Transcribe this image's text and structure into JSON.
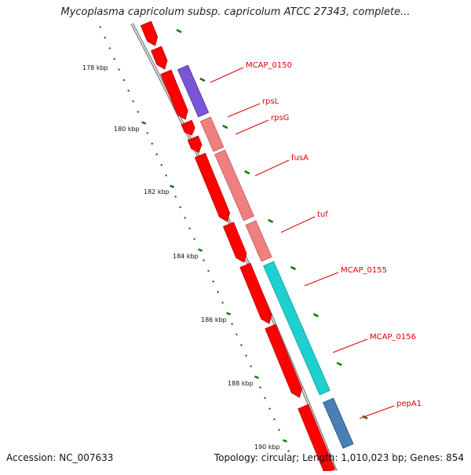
{
  "title": "Mycoplasma capricolum subsp. capricolum ATCC 27343, complete...",
  "accession": "Accession: NC_007633",
  "summary": "Topology: circular; Length: 1,010,023 bp; Genes: 854",
  "colors": {
    "backbone": "#8a8a8a",
    "cds_forward": "#ff0000",
    "cds_forward_edge": "#c80000",
    "tick": "#007a00",
    "label": "#e00000",
    "leader": "#e00000"
  },
  "scale_labels": [
    "178 kbp",
    "180 kbp",
    "182 kbp",
    "184 kbp",
    "186 kbp",
    "188 kbp",
    "190 kbp"
  ],
  "genes": [
    {
      "name": "MCAP_0150",
      "color": "#7b55d9",
      "edge": "#5a3aa8"
    },
    {
      "name": "rpsL",
      "color": "#f08080",
      "edge": "#c86464"
    },
    {
      "name": "rpsG",
      "color": "#f08080",
      "edge": "#c86464"
    },
    {
      "name": "fusA",
      "color": "#f08080",
      "edge": "#c86464"
    },
    {
      "name": "tuf",
      "color": "#f08080",
      "edge": "#c86464"
    },
    {
      "name": "MCAP_0155",
      "color": "#1fd0d0",
      "edge": "#12a6a6"
    },
    {
      "name": "MCAP_0156",
      "color": "#1fd0d0",
      "edge": "#12a6a6"
    },
    {
      "name": "pepA1",
      "color": "#4a7fb5",
      "edge": "#2f5d8a"
    }
  ]
}
